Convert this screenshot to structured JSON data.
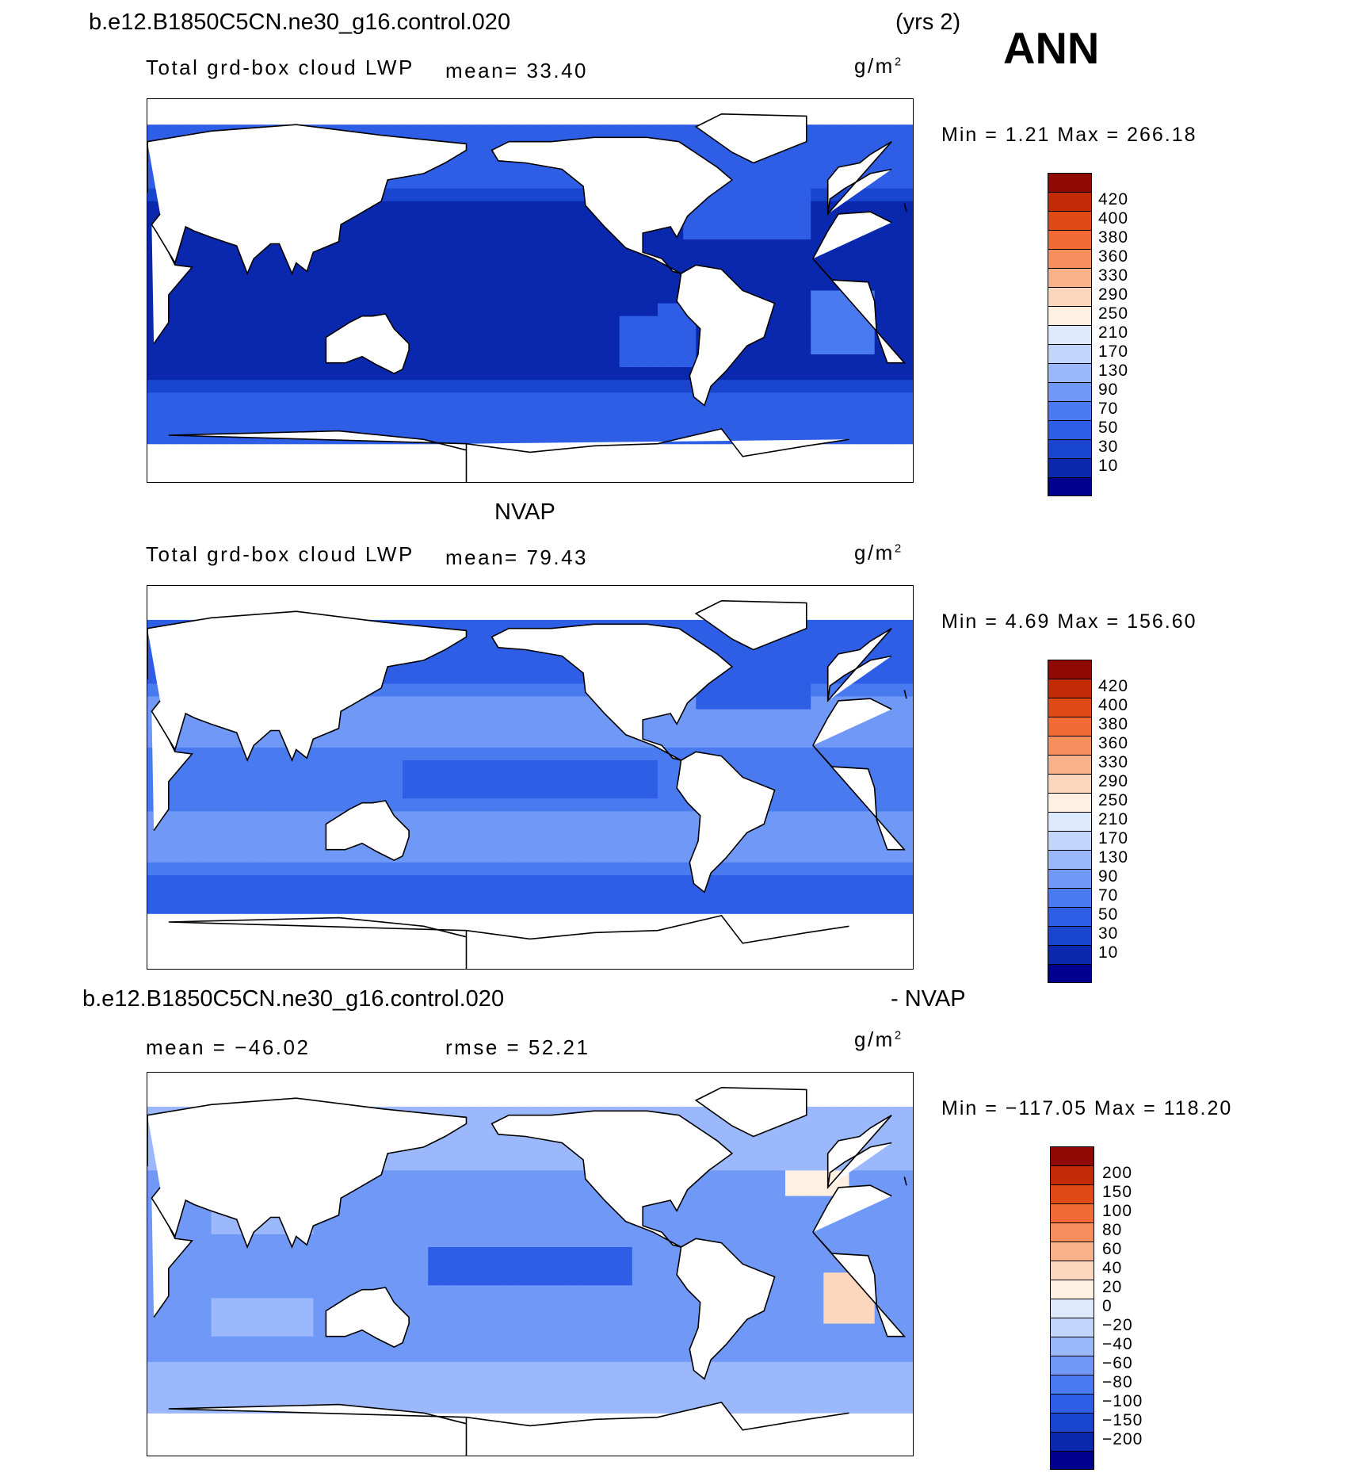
{
  "header": {
    "case_name": "b.e12.B1850C5CN.ne30_g16.control.020",
    "years": "(yrs 2)",
    "season": "ANN"
  },
  "colors": {
    "continuous": [
      "#00008e",
      "#0a28ae",
      "#1a46cf",
      "#2f5ee6",
      "#4a7af0",
      "#6f98f7",
      "#9ab8fb",
      "#c2d6fd",
      "#dde9fd",
      "#fff0e2",
      "#fcd6bd",
      "#f9b18c",
      "#f78e5e",
      "#f26a35",
      "#e04a16",
      "#c32a06",
      "#8e0a02"
    ],
    "difference": [
      "#00008e",
      "#0a28ae",
      "#1a46cf",
      "#2f5ee6",
      "#4a7af0",
      "#6f98f7",
      "#9ab8fb",
      "#c2d6fd",
      "#dde9fd",
      "#fff0e2",
      "#fcd6bd",
      "#f9b18c",
      "#f78e5e",
      "#f26a35",
      "#e04a16",
      "#c32a06",
      "#8e0a02"
    ],
    "land_outline": "#000000"
  },
  "panels": [
    {
      "title": "",
      "variable": "Total grd-box cloud LWP",
      "stat1": "mean=  33.40",
      "stat2": "",
      "units": "g/m",
      "units_exp": "2",
      "minmax": "Min =    1.21 Max = 266.18",
      "palette": "continuous",
      "field": "model"
    },
    {
      "title": "NVAP",
      "variable": "Total grd-box cloud LWP",
      "stat1": "mean=  79.43",
      "stat2": "",
      "units": "g/m",
      "units_exp": "2",
      "minmax": "Min =    4.69 Max = 156.60",
      "palette": "continuous",
      "field": "obs"
    },
    {
      "title": "b.e12.B1850C5CN.ne30_g16.control.020",
      "title_right": "- NVAP",
      "variable": "",
      "stat1": "mean = −46.02",
      "stat2": "rmse =  52.21",
      "units": "g/m",
      "units_exp": "2",
      "minmax": "Min = −117.05 Max = 118.20",
      "palette": "difference",
      "field": "diff"
    }
  ],
  "chart_data": [
    {
      "type": "heatmap",
      "title": "b.e12.B1850C5CN.ne30_g16.control.020 (yrs 2) ANN",
      "variable": "Total grd-box cloud LWP",
      "units": "g/m2",
      "mean": 33.4,
      "min": 1.21,
      "max": 266.18,
      "colorbar_levels": [
        420,
        400,
        380,
        360,
        330,
        290,
        250,
        210,
        170,
        130,
        90,
        70,
        50,
        30,
        10
      ],
      "projection": "cylindrical equidistant, centered 180",
      "region_values_estimate": {
        "tropical_pacific": 20,
        "southern_ocean": 45,
        "north_atlantic": 60,
        "se_atlantic_stratus": 80
      }
    },
    {
      "type": "heatmap",
      "title": "NVAP",
      "variable": "Total grd-box cloud LWP",
      "units": "g/m2",
      "mean": 79.43,
      "min": 4.69,
      "max": 156.6,
      "colorbar_levels": [
        420,
        400,
        380,
        360,
        330,
        290,
        250,
        210,
        170,
        130,
        90,
        70,
        50,
        30,
        10
      ],
      "region_values_estimate": {
        "tropical_pacific": 70,
        "southern_ocean": 80,
        "north_atlantic": 60,
        "subtropical_ocean": 95
      }
    },
    {
      "type": "heatmap",
      "title": "b.e12.B1850C5CN.ne30_g16.control.020 - NVAP",
      "units": "g/m2",
      "mean": -46.02,
      "rmse": 52.21,
      "min": -117.05,
      "max": 118.2,
      "colorbar_levels": [
        200,
        150,
        100,
        80,
        60,
        40,
        20,
        0,
        -20,
        -40,
        -60,
        -80,
        -100,
        -150,
        -200
      ],
      "region_values_estimate": {
        "equatorial_pacific": -100,
        "tropical_ocean": -60,
        "southern_ocean": -30,
        "se_atlantic": 50
      }
    }
  ]
}
